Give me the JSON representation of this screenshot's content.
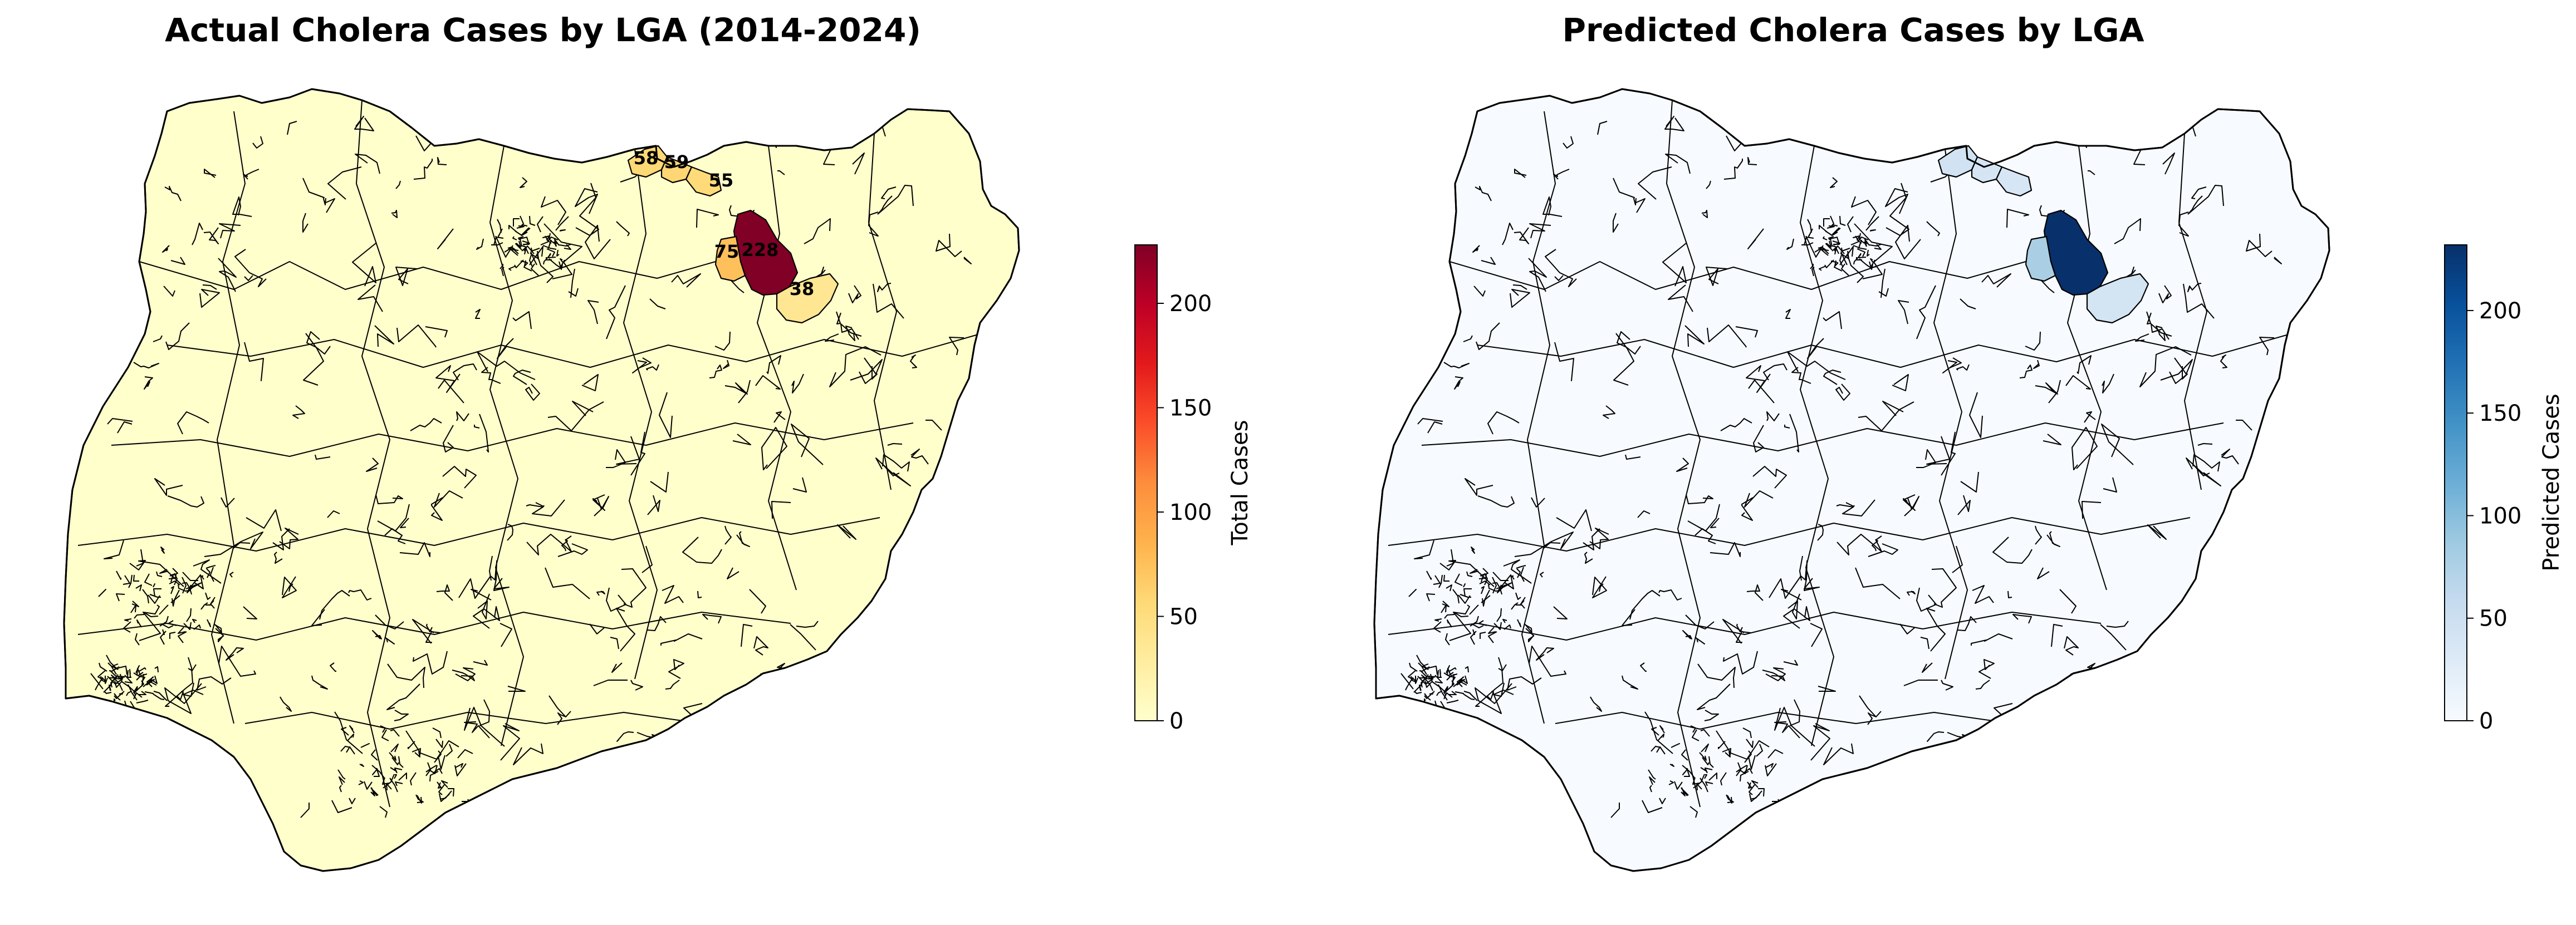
{
  "left_map": {
    "title": "Actual Cholera Cases by LGA (2014-2024)",
    "colorbar": {
      "label": "Total Cases",
      "ticks": [
        "0",
        "50",
        "100",
        "150",
        "200"
      ],
      "tick_values": [
        0,
        50,
        100,
        150,
        200
      ],
      "max": 228,
      "colormap": "YlOrRd",
      "stops": [
        "#ffffcc",
        "#ffeda0",
        "#fed976",
        "#feb24c",
        "#fd8d3c",
        "#fc4e2a",
        "#e31a1c",
        "#bd0026",
        "#800026"
      ]
    },
    "base_fill": "#ffffcc",
    "highlighted": [
      {
        "name": "lga-228",
        "value": 228,
        "label": "228"
      },
      {
        "name": "lga-75",
        "value": 75,
        "label": "75"
      },
      {
        "name": "lga-58",
        "value": 58,
        "label": "58"
      },
      {
        "name": "lga-59",
        "value": 59,
        "label": "59"
      },
      {
        "name": "lga-55",
        "value": 55,
        "label": "55"
      },
      {
        "name": "lga-38",
        "value": 38,
        "label": "38"
      }
    ]
  },
  "right_map": {
    "title": "Predicted Cholera Cases by LGA",
    "colorbar": {
      "label": "Predicted Cases",
      "ticks": [
        "0",
        "50",
        "100",
        "150",
        "200"
      ],
      "tick_values": [
        0,
        50,
        100,
        150,
        200
      ],
      "max": 232,
      "colormap": "Blues",
      "stops": [
        "#f7fbff",
        "#deebf7",
        "#c6dbef",
        "#9ecae1",
        "#6baed6",
        "#4292c6",
        "#2171b5",
        "#08519c",
        "#08306b"
      ]
    },
    "base_fill": "#f7fbff",
    "highlighted": [
      {
        "name": "lga-228",
        "value": 232
      },
      {
        "name": "lga-75",
        "value": 78
      },
      {
        "name": "lga-58",
        "value": 45
      },
      {
        "name": "lga-59",
        "value": 40
      },
      {
        "name": "lga-55",
        "value": 38
      },
      {
        "name": "lga-38",
        "value": 42
      }
    ]
  }
}
